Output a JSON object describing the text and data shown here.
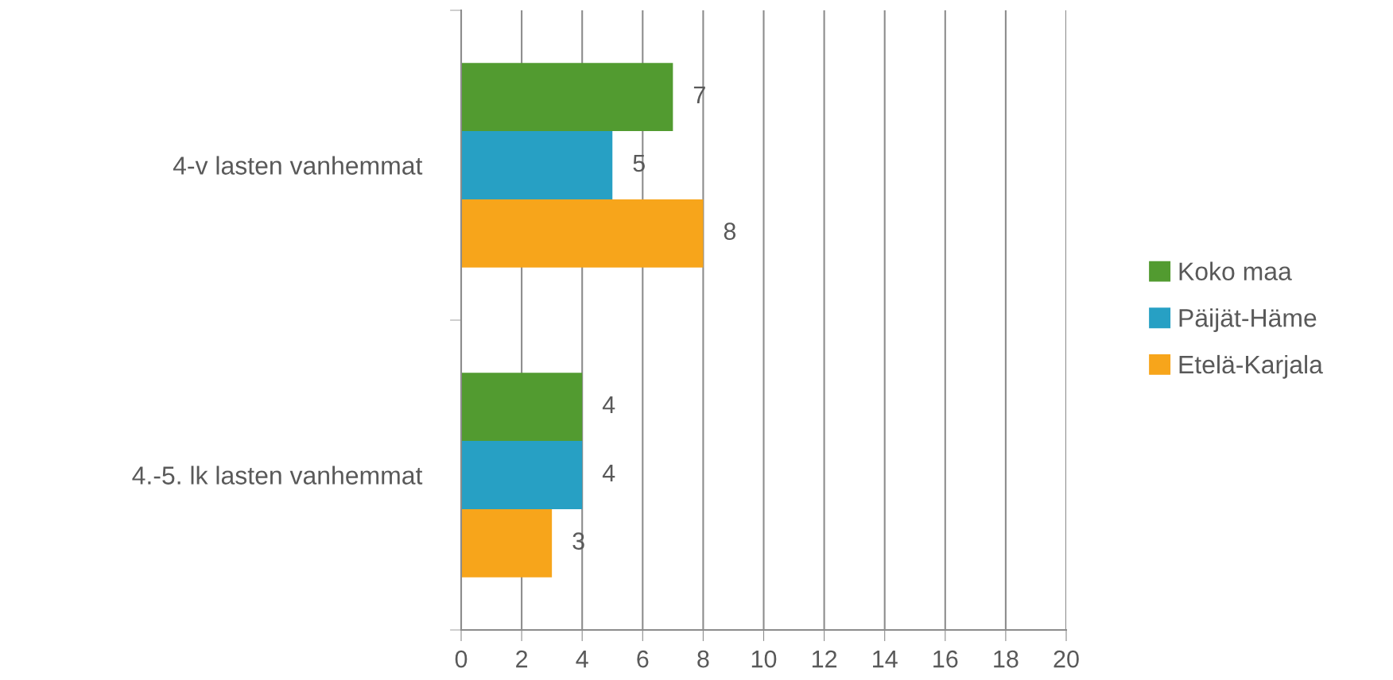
{
  "chart_data": {
    "type": "bar",
    "orientation": "horizontal",
    "categories": [
      "4-v lasten vanhemmat",
      "4.-5. lk lasten vanhemmat"
    ],
    "series": [
      {
        "name": "Koko maa",
        "color": "#529b30",
        "values": [
          7,
          4
        ]
      },
      {
        "name": "Päijät-Häme",
        "color": "#27a0c4",
        "values": [
          5,
          4
        ]
      },
      {
        "name": "Etelä-Karjala",
        "color": "#f7a51b",
        "values": [
          8,
          3
        ]
      }
    ],
    "xlim": [
      0,
      20
    ],
    "xticks": [
      0,
      2,
      4,
      6,
      8,
      10,
      12,
      14,
      16,
      18,
      20
    ],
    "grid": "x",
    "legend": "right",
    "data_labels": true
  }
}
